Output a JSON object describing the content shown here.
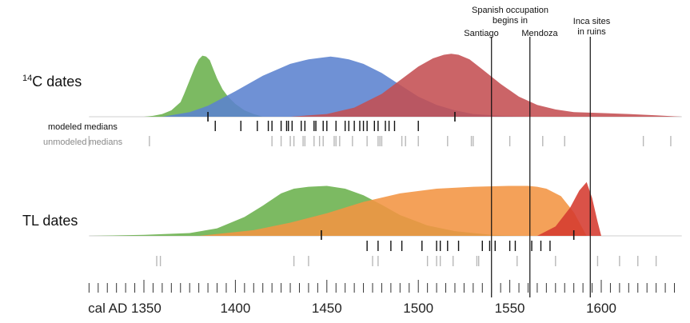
{
  "chart_data": {
    "type": "area",
    "xlim": [
      1320,
      1644
    ],
    "grid": false,
    "panels": [
      {
        "label": "dates",
        "label_sup": "14",
        "label_prefix": "C",
        "series": [
          {
            "color": "#6ab04c",
            "x": [
              1350,
              1355,
              1360,
              1365,
              1370,
              1372,
              1375,
              1378,
              1380,
              1382,
              1384,
              1386,
              1388,
              1390,
              1393,
              1396,
              1400,
              1405,
              1410,
              1415
            ],
            "y": [
              0,
              0.01,
              0.03,
              0.07,
              0.16,
              0.25,
              0.4,
              0.55,
              0.63,
              0.67,
              0.66,
              0.62,
              0.52,
              0.42,
              0.3,
              0.22,
              0.14,
              0.07,
              0.03,
              0
            ]
          },
          {
            "color": "#5b82cf",
            "x": [
              1360,
              1375,
              1385,
              1400,
              1415,
              1430,
              1440,
              1448,
              1452,
              1456,
              1462,
              1470,
              1480,
              1490,
              1500,
              1510,
              1520,
              1530,
              1545,
              1560
            ],
            "y": [
              0,
              0.05,
              0.12,
              0.28,
              0.45,
              0.58,
              0.63,
              0.65,
              0.66,
              0.65,
              0.63,
              0.58,
              0.48,
              0.35,
              0.22,
              0.13,
              0.07,
              0.03,
              0.01,
              0
            ]
          },
          {
            "color": "#c44e52",
            "x": [
              1430,
              1450,
              1465,
              1480,
              1490,
              1500,
              1508,
              1514,
              1518,
              1522,
              1528,
              1535,
              1545,
              1555,
              1565,
              1575,
              1585,
              1600,
              1615,
              1630,
              1644
            ],
            "y": [
              0,
              0.03,
              0.1,
              0.25,
              0.4,
              0.55,
              0.64,
              0.68,
              0.69,
              0.68,
              0.63,
              0.52,
              0.36,
              0.22,
              0.13,
              0.08,
              0.05,
              0.04,
              0.03,
              0.015,
              0
            ]
          }
        ],
        "medians_label": "modeled medians",
        "unmodeled_label": "unmodeled medians",
        "marker_ticks": [
          1385,
          1520
        ],
        "modeled_medians": [
          1389,
          1403,
          1412,
          1418,
          1420,
          1425,
          1428,
          1429,
          1431,
          1436,
          1438,
          1443,
          1444,
          1448,
          1450,
          1455,
          1460,
          1462,
          1465,
          1468,
          1470,
          1472,
          1476,
          1478,
          1482,
          1484,
          1487,
          1500
        ],
        "unmodeled_medians": [
          1320,
          1353,
          1420,
          1425,
          1430,
          1432,
          1437,
          1438,
          1443,
          1446,
          1448,
          1454,
          1455,
          1457,
          1464,
          1472,
          1478,
          1479,
          1480,
          1491,
          1493,
          1500,
          1516,
          1529,
          1530,
          1550,
          1568,
          1580,
          1623,
          1638
        ]
      },
      {
        "label": "TL dates",
        "series": [
          {
            "color": "#6ab04c",
            "x": [
              1320,
              1350,
              1375,
              1390,
              1405,
              1415,
              1425,
              1432,
              1440,
              1450,
              1460,
              1470,
              1480,
              1490,
              1505,
              1520,
              1540,
              1560
            ],
            "y": [
              0,
              0.01,
              0.03,
              0.08,
              0.2,
              0.32,
              0.45,
              0.5,
              0.52,
              0.53,
              0.5,
              0.43,
              0.33,
              0.22,
              0.11,
              0.05,
              0.01,
              0
            ]
          },
          {
            "color": "#f39442",
            "x": [
              1380,
              1410,
              1430,
              1450,
              1470,
              1490,
              1510,
              1530,
              1550,
              1560,
              1565,
              1570,
              1578,
              1585,
              1592
            ],
            "y": [
              0,
              0.06,
              0.14,
              0.24,
              0.36,
              0.45,
              0.5,
              0.52,
              0.53,
              0.53,
              0.52,
              0.5,
              0.42,
              0.25,
              0
            ]
          },
          {
            "color": "#d53a2f",
            "x": [
              1565,
              1575,
              1583,
              1588,
              1592,
              1595,
              1598,
              1600
            ],
            "y": [
              0,
              0.1,
              0.3,
              0.48,
              0.57,
              0.4,
              0.15,
              0
            ]
          }
        ],
        "marker_ticks": [
          1447,
          1585
        ],
        "modeled_medians": [
          1472,
          1478,
          1485,
          1491,
          1502,
          1510,
          1512,
          1516,
          1522,
          1535,
          1539,
          1542,
          1550,
          1553,
          1562,
          1567,
          1572
        ],
        "unmodeled_medians": [
          1357,
          1359,
          1432,
          1440,
          1475,
          1478,
          1505,
          1510,
          1512,
          1519,
          1532,
          1533,
          1554,
          1575,
          1598,
          1610,
          1620,
          1630
        ]
      }
    ],
    "reference_lines": [
      {
        "x": 1540,
        "text": [
          "Santiago"
        ]
      },
      {
        "x": 1561,
        "text": [
          "Mendoza"
        ]
      },
      {
        "x": 1594,
        "text": [
          "Inca sites",
          "in ruins"
        ]
      }
    ],
    "header_annotation": [
      "Spanish occupation",
      "begins in"
    ],
    "axis": {
      "label_prefix": "cal AD",
      "major": [
        1350,
        1400,
        1450,
        1500,
        1550,
        1600
      ],
      "minor_step": 5,
      "min": 1320,
      "max": 1644
    }
  }
}
